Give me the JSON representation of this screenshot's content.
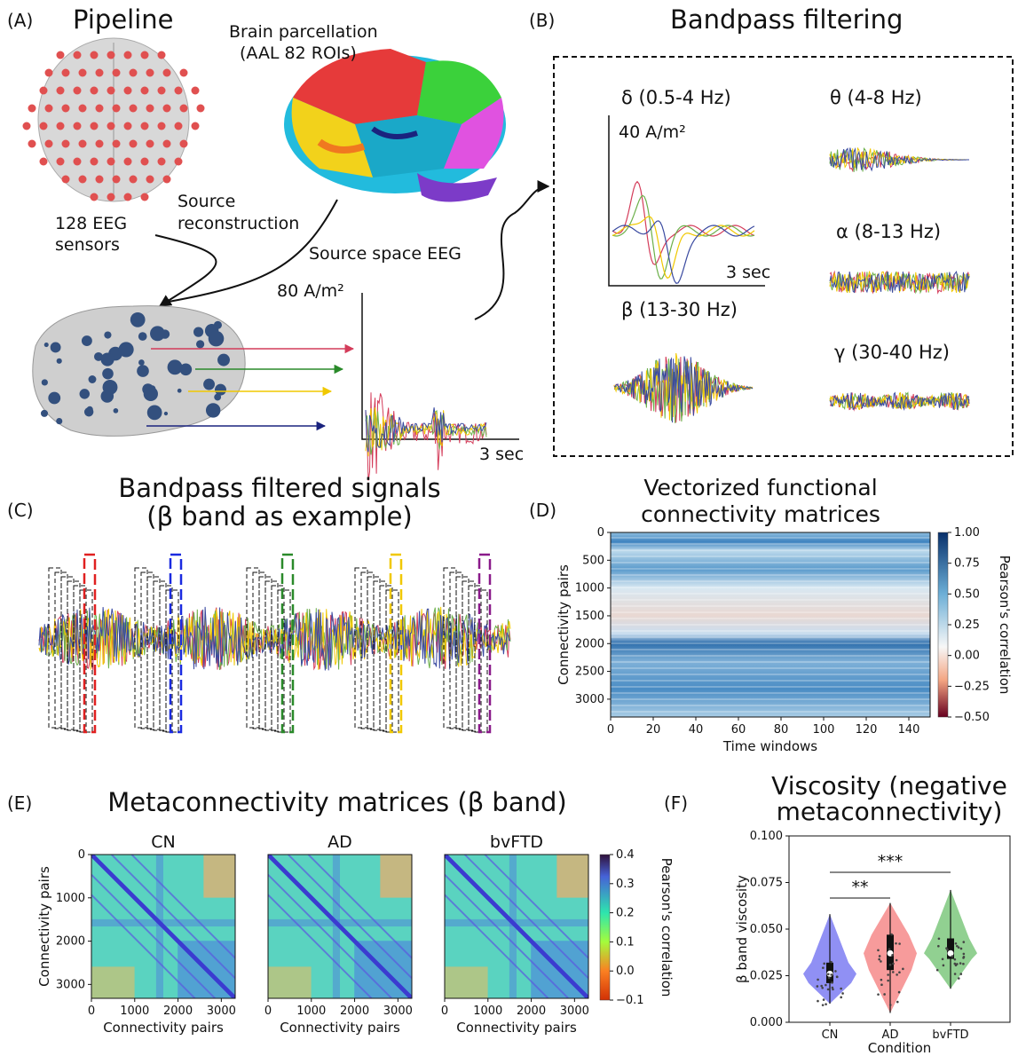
{
  "diagram": {
    "A": {
      "label": "(A)",
      "title": "Pipeline",
      "parcellation": [
        "Brain parcellation",
        "(AAL 82 ROIs)"
      ],
      "sensors": [
        "128 EEG",
        "sensors"
      ],
      "reconstruction": [
        "Source",
        "reconstruction"
      ],
      "source_space": "Source space EEG",
      "amplitude": "80 A/m²",
      "time": "3 sec"
    },
    "B": {
      "label": "(B)",
      "title": "Bandpass filtering",
      "amplitude": "40 A/m²",
      "time": "3 sec",
      "bands": [
        "δ  (0.5-4 Hz)",
        "θ  (4-8 Hz)",
        "α  (8-13 Hz)",
        "β  (13-30 Hz)",
        "γ  (30-40 Hz)"
      ]
    },
    "C": {
      "label": "(C)",
      "title": [
        "Bandpass filtered signals",
        "(β band as example)"
      ]
    }
  },
  "chart_data": [
    {
      "type": "heatmap",
      "panel_label": "(D)",
      "title": [
        "Vectorized functional",
        "connectivity matrices"
      ],
      "xlabel": "Time windows",
      "ylabel": "Connectivity pairs",
      "xlim": [
        0,
        150
      ],
      "ylim": [
        0,
        3321
      ],
      "xticks": [
        0,
        20,
        40,
        60,
        80,
        100,
        120,
        140
      ],
      "yticks": [
        0,
        500,
        1000,
        1500,
        2000,
        2500,
        3000
      ],
      "colorbar": {
        "label": "Pearson's correlation",
        "lim": [
          -0.5,
          1
        ],
        "ticks": [
          {
            "value": 1,
            "label": "1.00"
          },
          0.75,
          {
            "value": 0.5,
            "label": "0.50"
          },
          0.25,
          {
            "value": 0,
            "label": "0.00"
          },
          {
            "value": -0.25,
            "label": "−0.25"
          },
          {
            "value": -0.5,
            "label": "−0.50"
          }
        ]
      }
    },
    {
      "type": "heatmap",
      "panel_label": "(E)",
      "title": "Metaconnectivity matrices (β band)",
      "subplots": [
        "CN",
        "AD",
        "bvFTD"
      ],
      "xlabel": "Connectivity pairs",
      "ylabel": "Connectivity pairs",
      "xlim": [
        0,
        3321
      ],
      "ylim": [
        0,
        3321
      ],
      "xticks": [
        0,
        1000,
        2000,
        3000
      ],
      "yticks": [
        0,
        1000,
        2000,
        3000
      ],
      "colorbar": {
        "label": "Pearson's correlation",
        "lim": [
          -0.1,
          0.4
        ],
        "ticks": [
          0.4,
          0.3,
          0.2,
          0.1,
          {
            "value": 0,
            "label": "0.0"
          },
          {
            "value": -0.1,
            "label": "−0.1"
          }
        ]
      }
    },
    {
      "type": "violin",
      "panel_label": "(F)",
      "title": [
        "Viscosity (negative",
        "metaconnectivity)"
      ],
      "categories": [
        "CN",
        "AD",
        "bvFTD"
      ],
      "xlabel": "Condition",
      "ylabel": "β band viscosity",
      "colors": [
        "#6b6bf0",
        "#f47a7a",
        "#6cc06c"
      ],
      "ylim": [
        0,
        0.1
      ],
      "yticks": [
        {
          "value": 0,
          "label": "0.000"
        },
        0.025,
        {
          "value": 0.05,
          "label": "0.050"
        },
        0.075,
        {
          "value": 0.1,
          "label": "0.100"
        }
      ],
      "min": [
        0.01,
        0.005,
        0.018
      ],
      "q1": [
        0.021,
        0.028,
        0.034
      ],
      "median": [
        0.026,
        0.037,
        0.037
      ],
      "q3": [
        0.032,
        0.047,
        0.045
      ],
      "max": [
        0.058,
        0.064,
        0.071
      ],
      "significance": [
        "**",
        "***"
      ]
    }
  ]
}
